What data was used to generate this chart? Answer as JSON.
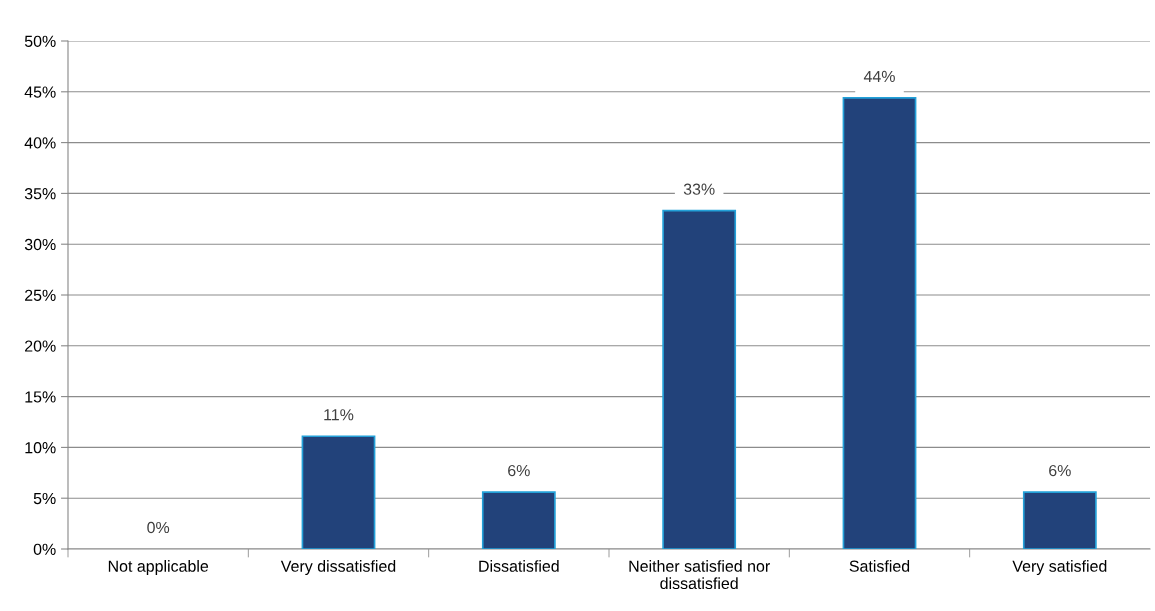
{
  "chart_data": {
    "type": "bar",
    "categories": [
      "Not applicable",
      "Very dissatisfied",
      "Dissatisfied",
      "Neither satisfied nor dissatisfied",
      "Satisfied",
      "Very satisfied"
    ],
    "values": [
      0,
      11.1,
      5.6,
      33.3,
      44.4,
      5.6
    ],
    "value_labels": [
      "0%",
      "11%",
      "6%",
      "33%",
      "44%",
      "6%"
    ],
    "color": "#22427a",
    "ylim": [
      0,
      50
    ],
    "yticks": [
      {
        "value": 0,
        "label": "0%"
      },
      {
        "value": 5,
        "label": "5%"
      },
      {
        "value": 10,
        "label": "10%"
      },
      {
        "value": 15,
        "label": "15%"
      },
      {
        "value": 20,
        "label": "20%"
      },
      {
        "value": 25,
        "label": "25%"
      },
      {
        "value": 30,
        "label": "30%"
      },
      {
        "value": 35,
        "label": "35%"
      },
      {
        "value": 40,
        "label": "40%"
      },
      {
        "value": 45,
        "label": "45%"
      },
      {
        "value": 50,
        "label": "50%"
      }
    ],
    "grid": "y",
    "legend": false
  }
}
